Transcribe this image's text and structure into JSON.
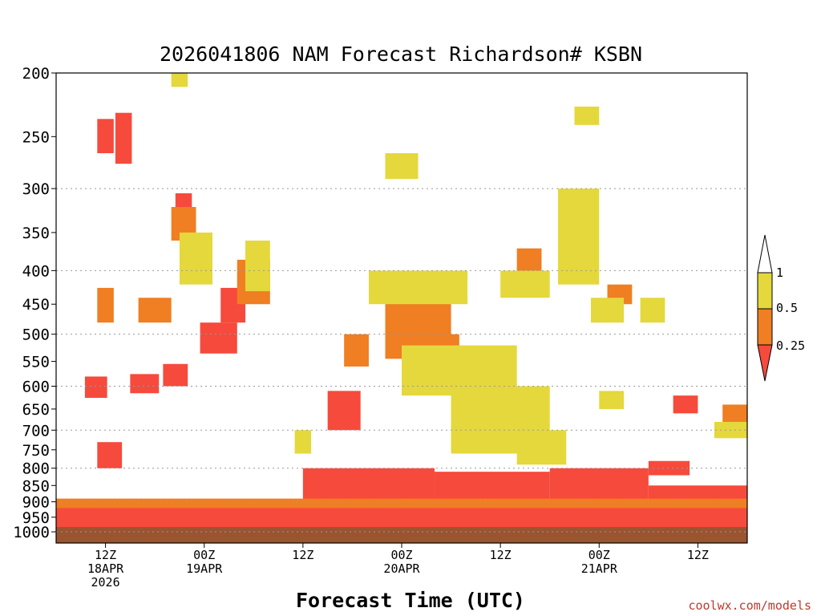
{
  "chart_data": {
    "type": "heatmap",
    "title": "2026041806 NAM Forecast Richardson# KSBN",
    "xlabel": "Forecast Time (UTC)",
    "ylabel": "",
    "credit": "coolwx.com/models",
    "y_axis": {
      "scale": "log-pressure",
      "inverted": true,
      "range": [
        1000,
        200
      ],
      "ticks": [
        200,
        250,
        300,
        350,
        400,
        450,
        500,
        550,
        600,
        650,
        700,
        750,
        800,
        850,
        900,
        950,
        1000
      ],
      "gridlines": [
        300,
        400,
        500,
        600,
        700,
        800,
        900,
        1000
      ]
    },
    "x_axis": {
      "range": [
        "2026-04-18 06Z",
        "2026-04-21 18Z"
      ],
      "ticks": [
        {
          "hours_from_start": 6,
          "lines": [
            "12Z",
            "18APR",
            "2026"
          ]
        },
        {
          "hours_from_start": 18,
          "lines": [
            "00Z",
            "19APR"
          ]
        },
        {
          "hours_from_start": 30,
          "lines": [
            "12Z"
          ]
        },
        {
          "hours_from_start": 42,
          "lines": [
            "00Z",
            "20APR"
          ]
        },
        {
          "hours_from_start": 54,
          "lines": [
            "12Z"
          ]
        },
        {
          "hours_from_start": 66,
          "lines": [
            "00Z",
            "21APR"
          ]
        },
        {
          "hours_from_start": 78,
          "lines": [
            "12Z"
          ]
        }
      ],
      "total_hours": 84
    },
    "color_scale": {
      "levels": [
        "0.25",
        "0.5",
        "1"
      ],
      "classes": [
        {
          "range": "< 0.25",
          "color": "#f64a3c"
        },
        {
          "range": "0.25 - 0.5",
          "color": "#f07e22"
        },
        {
          "range": "0.5 - 1",
          "color": "#e4d83c"
        },
        {
          "range": "> 1",
          "color": "#ffffff"
        }
      ],
      "below_ground_color": "#9a5430"
    },
    "regions": [
      {
        "class": "lt0.25",
        "time": [
          0,
          84
        ],
        "pressure": [
          900,
          985
        ]
      },
      {
        "class": "lt0.25",
        "time": [
          3.5,
          6.2
        ],
        "pressure": [
          580,
          625
        ]
      },
      {
        "class": "lt0.25",
        "time": [
          9,
          12.5
        ],
        "pressure": [
          575,
          615
        ]
      },
      {
        "class": "lt0.25",
        "time": [
          13,
          16
        ],
        "pressure": [
          555,
          600
        ]
      },
      {
        "class": "lt0.25",
        "time": [
          5,
          7
        ],
        "pressure": [
          235,
          265
        ]
      },
      {
        "class": "lt0.25",
        "time": [
          7.2,
          9.2
        ],
        "pressure": [
          230,
          275
        ]
      },
      {
        "class": "lt0.25",
        "time": [
          14.5,
          16.5
        ],
        "pressure": [
          305,
          335
        ]
      },
      {
        "class": "lt0.25",
        "time": [
          17.5,
          22
        ],
        "pressure": [
          480,
          535
        ]
      },
      {
        "class": "lt0.25",
        "time": [
          20,
          23
        ],
        "pressure": [
          425,
          480
        ]
      },
      {
        "class": "lt0.25",
        "time": [
          33,
          37
        ],
        "pressure": [
          610,
          700
        ]
      },
      {
        "class": "lt0.25",
        "time": [
          30,
          46
        ],
        "pressure": [
          800,
          900
        ]
      },
      {
        "class": "lt0.25",
        "time": [
          46,
          60
        ],
        "pressure": [
          810,
          900
        ]
      },
      {
        "class": "lt0.25",
        "time": [
          60,
          72
        ],
        "pressure": [
          800,
          900
        ]
      },
      {
        "class": "lt0.25",
        "time": [
          72,
          84
        ],
        "pressure": [
          850,
          900
        ]
      },
      {
        "class": "lt0.25",
        "time": [
          72,
          77
        ],
        "pressure": [
          780,
          820
        ]
      },
      {
        "class": "lt0.25",
        "time": [
          75,
          78
        ],
        "pressure": [
          620,
          660
        ]
      },
      {
        "class": "lt0.25",
        "time": [
          5,
          8
        ],
        "pressure": [
          730,
          800
        ]
      },
      {
        "class": "0.25-0.5",
        "time": [
          5,
          7
        ],
        "pressure": [
          425,
          480
        ]
      },
      {
        "class": "0.25-0.5",
        "time": [
          10,
          14
        ],
        "pressure": [
          440,
          480
        ]
      },
      {
        "class": "0.25-0.5",
        "time": [
          14,
          17
        ],
        "pressure": [
          320,
          360
        ]
      },
      {
        "class": "0.25-0.5",
        "time": [
          22,
          26
        ],
        "pressure": [
          385,
          450
        ]
      },
      {
        "class": "0.25-0.5",
        "time": [
          35,
          38
        ],
        "pressure": [
          500,
          560
        ]
      },
      {
        "class": "0.25-0.5",
        "time": [
          40,
          48
        ],
        "pressure": [
          420,
          545
        ]
      },
      {
        "class": "0.25-0.5",
        "time": [
          44,
          49
        ],
        "pressure": [
          500,
          560
        ]
      },
      {
        "class": "0.25-0.5",
        "time": [
          56,
          59
        ],
        "pressure": [
          370,
          420
        ]
      },
      {
        "class": "0.25-0.5",
        "time": [
          67,
          70
        ],
        "pressure": [
          420,
          450
        ]
      },
      {
        "class": "0.25-0.5",
        "time": [
          81,
          84
        ],
        "pressure": [
          640,
          700
        ]
      },
      {
        "class": "0.25-0.5",
        "time": [
          0,
          84
        ],
        "pressure": [
          890,
          920
        ]
      },
      {
        "class": "0.5-1",
        "time": [
          38,
          50
        ],
        "pressure": [
          400,
          450
        ]
      },
      {
        "class": "0.5-1",
        "time": [
          42,
          56
        ],
        "pressure": [
          520,
          620
        ]
      },
      {
        "class": "0.5-1",
        "time": [
          48,
          60
        ],
        "pressure": [
          600,
          760
        ]
      },
      {
        "class": "0.5-1",
        "time": [
          56,
          62
        ],
        "pressure": [
          700,
          790
        ]
      },
      {
        "class": "0.5-1",
        "time": [
          15,
          19
        ],
        "pressure": [
          350,
          420
        ]
      },
      {
        "class": "0.5-1",
        "time": [
          23,
          26
        ],
        "pressure": [
          360,
          430
        ]
      },
      {
        "class": "0.5-1",
        "time": [
          54,
          60
        ],
        "pressure": [
          400,
          440
        ]
      },
      {
        "class": "0.5-1",
        "time": [
          61,
          66
        ],
        "pressure": [
          300,
          420
        ]
      },
      {
        "class": "0.5-1",
        "time": [
          65,
          69
        ],
        "pressure": [
          440,
          480
        ]
      },
      {
        "class": "0.5-1",
        "time": [
          71,
          74
        ],
        "pressure": [
          440,
          480
        ]
      },
      {
        "class": "0.5-1",
        "time": [
          66,
          69
        ],
        "pressure": [
          610,
          650
        ]
      },
      {
        "class": "0.5-1",
        "time": [
          80,
          84
        ],
        "pressure": [
          680,
          720
        ]
      },
      {
        "class": "0.5-1",
        "time": [
          29,
          31
        ],
        "pressure": [
          700,
          760
        ]
      },
      {
        "class": "0.5-1",
        "time": [
          40,
          44
        ],
        "pressure": [
          265,
          290
        ]
      },
      {
        "class": "0.5-1",
        "time": [
          63,
          66
        ],
        "pressure": [
          225,
          240
        ]
      },
      {
        "class": "0.5-1",
        "time": [
          14,
          16
        ],
        "pressure": [
          200,
          210
        ]
      }
    ]
  }
}
